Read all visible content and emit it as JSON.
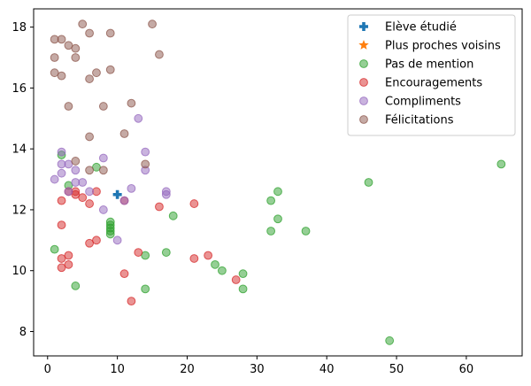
{
  "chart_data": {
    "type": "scatter",
    "title": "",
    "xlabel": "",
    "ylabel": "",
    "xlim": [
      -2,
      68
    ],
    "ylim": [
      7.2,
      18.6
    ],
    "xticks": [
      0,
      10,
      20,
      30,
      40,
      50,
      60
    ],
    "yticks": [
      8,
      10,
      12,
      14,
      16,
      18
    ],
    "grid": false,
    "legend_position": "top-right",
    "series": [
      {
        "name": "Elève étudié",
        "marker": "plus",
        "color": "#1f77b4",
        "points": [
          [
            10,
            12.5
          ]
        ]
      },
      {
        "name": "Plus proches voisins",
        "marker": "star",
        "color": "#ff7f0e",
        "points": []
      },
      {
        "name": "Pas de mention",
        "marker": "circle",
        "color": "#2ca02c",
        "points": [
          [
            1,
            10.7
          ],
          [
            2,
            13.8
          ],
          [
            3,
            12.8
          ],
          [
            4,
            9.5
          ],
          [
            7,
            13.4
          ],
          [
            9,
            11.5
          ],
          [
            9,
            11.3
          ],
          [
            9,
            11.4
          ],
          [
            9,
            11.6
          ],
          [
            9,
            11.2
          ],
          [
            14,
            10.5
          ],
          [
            14,
            9.4
          ],
          [
            17,
            10.6
          ],
          [
            18,
            11.8
          ],
          [
            24,
            10.2
          ],
          [
            25,
            10.0
          ],
          [
            28,
            9.9
          ],
          [
            28,
            9.4
          ],
          [
            32,
            12.3
          ],
          [
            32,
            11.3
          ],
          [
            33,
            12.6
          ],
          [
            33,
            11.7
          ],
          [
            37,
            11.3
          ],
          [
            46,
            12.9
          ],
          [
            49,
            7.7
          ],
          [
            65,
            13.5
          ]
        ]
      },
      {
        "name": "Encouragements",
        "marker": "circle",
        "color": "#d62728",
        "points": [
          [
            2,
            12.3
          ],
          [
            2,
            11.5
          ],
          [
            2,
            10.4
          ],
          [
            2,
            10.1
          ],
          [
            3,
            12.6
          ],
          [
            3,
            10.5
          ],
          [
            3,
            10.2
          ],
          [
            4,
            12.6
          ],
          [
            4,
            12.5
          ],
          [
            5,
            12.4
          ],
          [
            6,
            12.2
          ],
          [
            6,
            10.9
          ],
          [
            7,
            12.6
          ],
          [
            7,
            11.0
          ],
          [
            11,
            12.3
          ],
          [
            11,
            9.9
          ],
          [
            12,
            9.0
          ],
          [
            13,
            10.6
          ],
          [
            16,
            12.1
          ],
          [
            21,
            12.2
          ],
          [
            21,
            10.4
          ],
          [
            23,
            10.5
          ],
          [
            27,
            9.7
          ]
        ]
      },
      {
        "name": "Compliments",
        "marker": "circle",
        "color": "#9467bd",
        "points": [
          [
            1,
            13.0
          ],
          [
            2,
            13.9
          ],
          [
            2,
            13.5
          ],
          [
            2,
            13.2
          ],
          [
            3,
            13.5
          ],
          [
            3,
            12.6
          ],
          [
            4,
            13.3
          ],
          [
            4,
            12.9
          ],
          [
            5,
            12.9
          ],
          [
            6,
            12.6
          ],
          [
            8,
            13.7
          ],
          [
            8,
            12.0
          ],
          [
            10,
            11.0
          ],
          [
            11,
            12.3
          ],
          [
            12,
            12.7
          ],
          [
            13,
            15.0
          ],
          [
            14,
            13.9
          ],
          [
            14,
            13.3
          ],
          [
            17,
            12.6
          ],
          [
            17,
            12.5
          ]
        ]
      },
      {
        "name": "Félicitations",
        "marker": "circle",
        "color": "#8c564b",
        "points": [
          [
            1,
            17.6
          ],
          [
            1,
            17.0
          ],
          [
            1,
            16.5
          ],
          [
            2,
            17.6
          ],
          [
            2,
            16.4
          ],
          [
            3,
            17.4
          ],
          [
            3,
            15.4
          ],
          [
            4,
            17.3
          ],
          [
            4,
            17.0
          ],
          [
            4,
            13.6
          ],
          [
            5,
            18.1
          ],
          [
            6,
            17.8
          ],
          [
            6,
            16.3
          ],
          [
            6,
            14.4
          ],
          [
            6,
            13.3
          ],
          [
            7,
            16.5
          ],
          [
            8,
            15.4
          ],
          [
            8,
            13.3
          ],
          [
            9,
            17.8
          ],
          [
            9,
            16.6
          ],
          [
            11,
            14.5
          ],
          [
            12,
            15.5
          ],
          [
            14,
            13.5
          ],
          [
            15,
            18.1
          ],
          [
            16,
            17.1
          ]
        ]
      }
    ]
  }
}
